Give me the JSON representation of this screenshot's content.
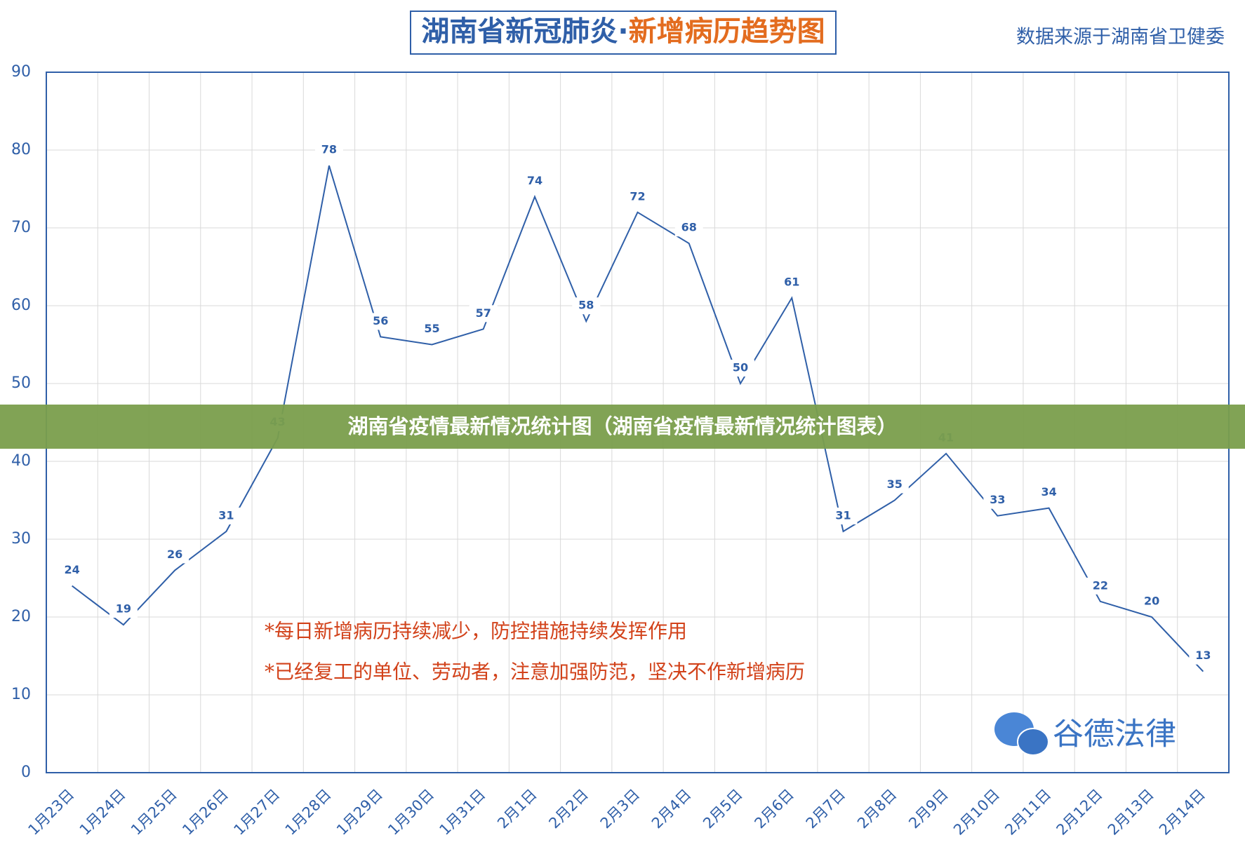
{
  "chart_data": {
    "type": "line",
    "title_part1": "湖南省新冠肺炎·",
    "title_part2": "新增病历趋势图",
    "source": "数据来源于湖南省卫健委",
    "banner": "湖南省疫情最新情况统计图（湖南省疫情最新情况统计图表）",
    "annotations": [
      "*每日新增病历持续减少，防控措施持续发挥作用",
      "*已经复工的单位、劳动者，注意加强防范，坚决不作新增病历"
    ],
    "logo": "谷德法律",
    "categories": [
      "1月23日",
      "1月24日",
      "1月25日",
      "1月26日",
      "1月27日",
      "1月28日",
      "1月29日",
      "1月30日",
      "1月31日",
      "2月1日",
      "2月2日",
      "2月3日",
      "2月4日",
      "2月5日",
      "2月6日",
      "2月7日",
      "2月8日",
      "2月9日",
      "2月10日",
      "2月11日",
      "2月12日",
      "2月13日",
      "2月14日"
    ],
    "values": [
      24,
      19,
      26,
      31,
      43,
      78,
      56,
      55,
      57,
      74,
      58,
      72,
      68,
      50,
      61,
      31,
      35,
      41,
      33,
      34,
      22,
      20,
      13
    ],
    "color": "#2f5fa8",
    "ylim": [
      0,
      90
    ],
    "yticks": [
      0,
      10,
      20,
      30,
      40,
      50,
      60,
      70,
      80,
      90
    ],
    "grid": true
  }
}
